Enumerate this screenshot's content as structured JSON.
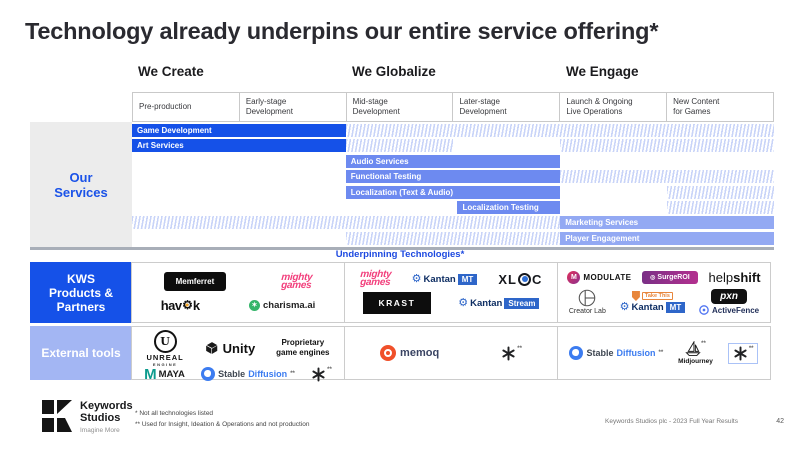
{
  "title": "Technology already underpins our entire service offering*",
  "phases": [
    {
      "label": "We Create"
    },
    {
      "label": "We Globalize"
    },
    {
      "label": "We Engage"
    }
  ],
  "stages": [
    "Pre-production",
    "Early-stage\nDevelopment",
    "Mid-stage\nDevelopment",
    "Later-stage\nDevelopment",
    "Launch & Ongoing\nLive Operations",
    "New Content\nfor Games"
  ],
  "row_labels": {
    "services": "Our Services",
    "kws": "KWS Products & Partners",
    "external": "External tools"
  },
  "underpinning_label": "Underpinning Technologies*",
  "services": [
    {
      "label": "Game Development",
      "slug": "game-development",
      "tone": "dark",
      "segments": [
        {
          "type": "solid",
          "from": 0,
          "to": 33.3,
          "label": true
        },
        {
          "type": "hatch",
          "from": 33.3,
          "to": 100
        }
      ]
    },
    {
      "label": "Art Services",
      "slug": "art-services",
      "tone": "dark",
      "segments": [
        {
          "type": "solid",
          "from": 0,
          "to": 33.3,
          "label": true
        },
        {
          "type": "hatch",
          "from": 33.3,
          "to": 50
        },
        {
          "type": "hatch",
          "from": 66.7,
          "to": 100
        }
      ]
    },
    {
      "label": "Audio Services",
      "slug": "audio-services",
      "tone": "mid",
      "segments": [
        {
          "type": "solid",
          "from": 33.3,
          "to": 66.7,
          "label": true
        }
      ]
    },
    {
      "label": "Functional Testing",
      "slug": "functional-testing",
      "tone": "mid",
      "segments": [
        {
          "type": "solid",
          "from": 33.3,
          "to": 66.7,
          "label": true
        },
        {
          "type": "hatch",
          "from": 66.7,
          "to": 100
        }
      ]
    },
    {
      "label": "Localization (Text & Audio)",
      "slug": "localization-text-audio",
      "tone": "mid",
      "segments": [
        {
          "type": "solid",
          "from": 33.3,
          "to": 66.7,
          "label": true
        },
        {
          "type": "hatch",
          "from": 83.3,
          "to": 100
        }
      ]
    },
    {
      "label": "Localization Testing",
      "slug": "localization-testing",
      "tone": "mid",
      "segments": [
        {
          "type": "solid",
          "from": 50.7,
          "to": 66.7,
          "label": true
        },
        {
          "type": "hatch",
          "from": 83.3,
          "to": 100
        }
      ]
    },
    {
      "label": "Marketing Services",
      "slug": "marketing-services",
      "tone": "light",
      "segments": [
        {
          "type": "hatch",
          "from": 0,
          "to": 66.7
        },
        {
          "type": "solid",
          "from": 66.7,
          "to": 100,
          "label": true
        }
      ]
    },
    {
      "label": "Player Engagement",
      "slug": "player-engagement",
      "tone": "light",
      "segments": [
        {
          "type": "hatch",
          "from": 33.3,
          "to": 66.7
        },
        {
          "type": "solid",
          "from": 66.7,
          "to": 100,
          "label": true
        }
      ]
    }
  ],
  "logos": {
    "memferret": "Memferret",
    "mighty_line1": "mighty",
    "mighty_line2": "games",
    "havok_a": "hav",
    "havok_b": "k",
    "charisma": "charisma.ai",
    "kantan": "Kantan",
    "kantan_mt": "MT",
    "kantan_stream": "Stream",
    "xloc_a": "XL",
    "xloc_b": "C",
    "krast": "KRAST",
    "modulate": "MODULATE",
    "surgeroi": "SurgeROI",
    "helpshift_a": "help",
    "helpshift_b": "shift",
    "creatorlab": "Creator Lab",
    "takethis": "Take This",
    "pxn": "pxn",
    "activefence": "ActiveFence",
    "unreal_u": "U",
    "unreal_a": "UNREAL",
    "unreal_b": "ENGINE",
    "unity": "Unity",
    "proprietary": "Proprietary\ngame engines",
    "maya_m": "M",
    "maya": "MAYA",
    "stable_a": "Stable",
    "stable_b": "Diffusion",
    "memoq": "memoq",
    "midjourney": "Midjourney",
    "note": "**"
  },
  "footnotes": [
    "* Not all technologies listed",
    "** Used for Insight, Ideation & Operations and not production"
  ],
  "brand": {
    "name_line1": "Keywords",
    "name_line2": "Studios",
    "tagline": "Imagine More"
  },
  "footer_credit": "Keywords Studios plc - 2023 Full Year Results",
  "page_number": "42",
  "colors": {
    "primary_blue": "#1551e8",
    "mid_blue": "#6d8af0",
    "light_blue": "#93a9f3",
    "hatch_blue": "#c9d4f8",
    "external_label_blue": "#a3b6f3",
    "separator_gray": "#a8aeb8"
  }
}
